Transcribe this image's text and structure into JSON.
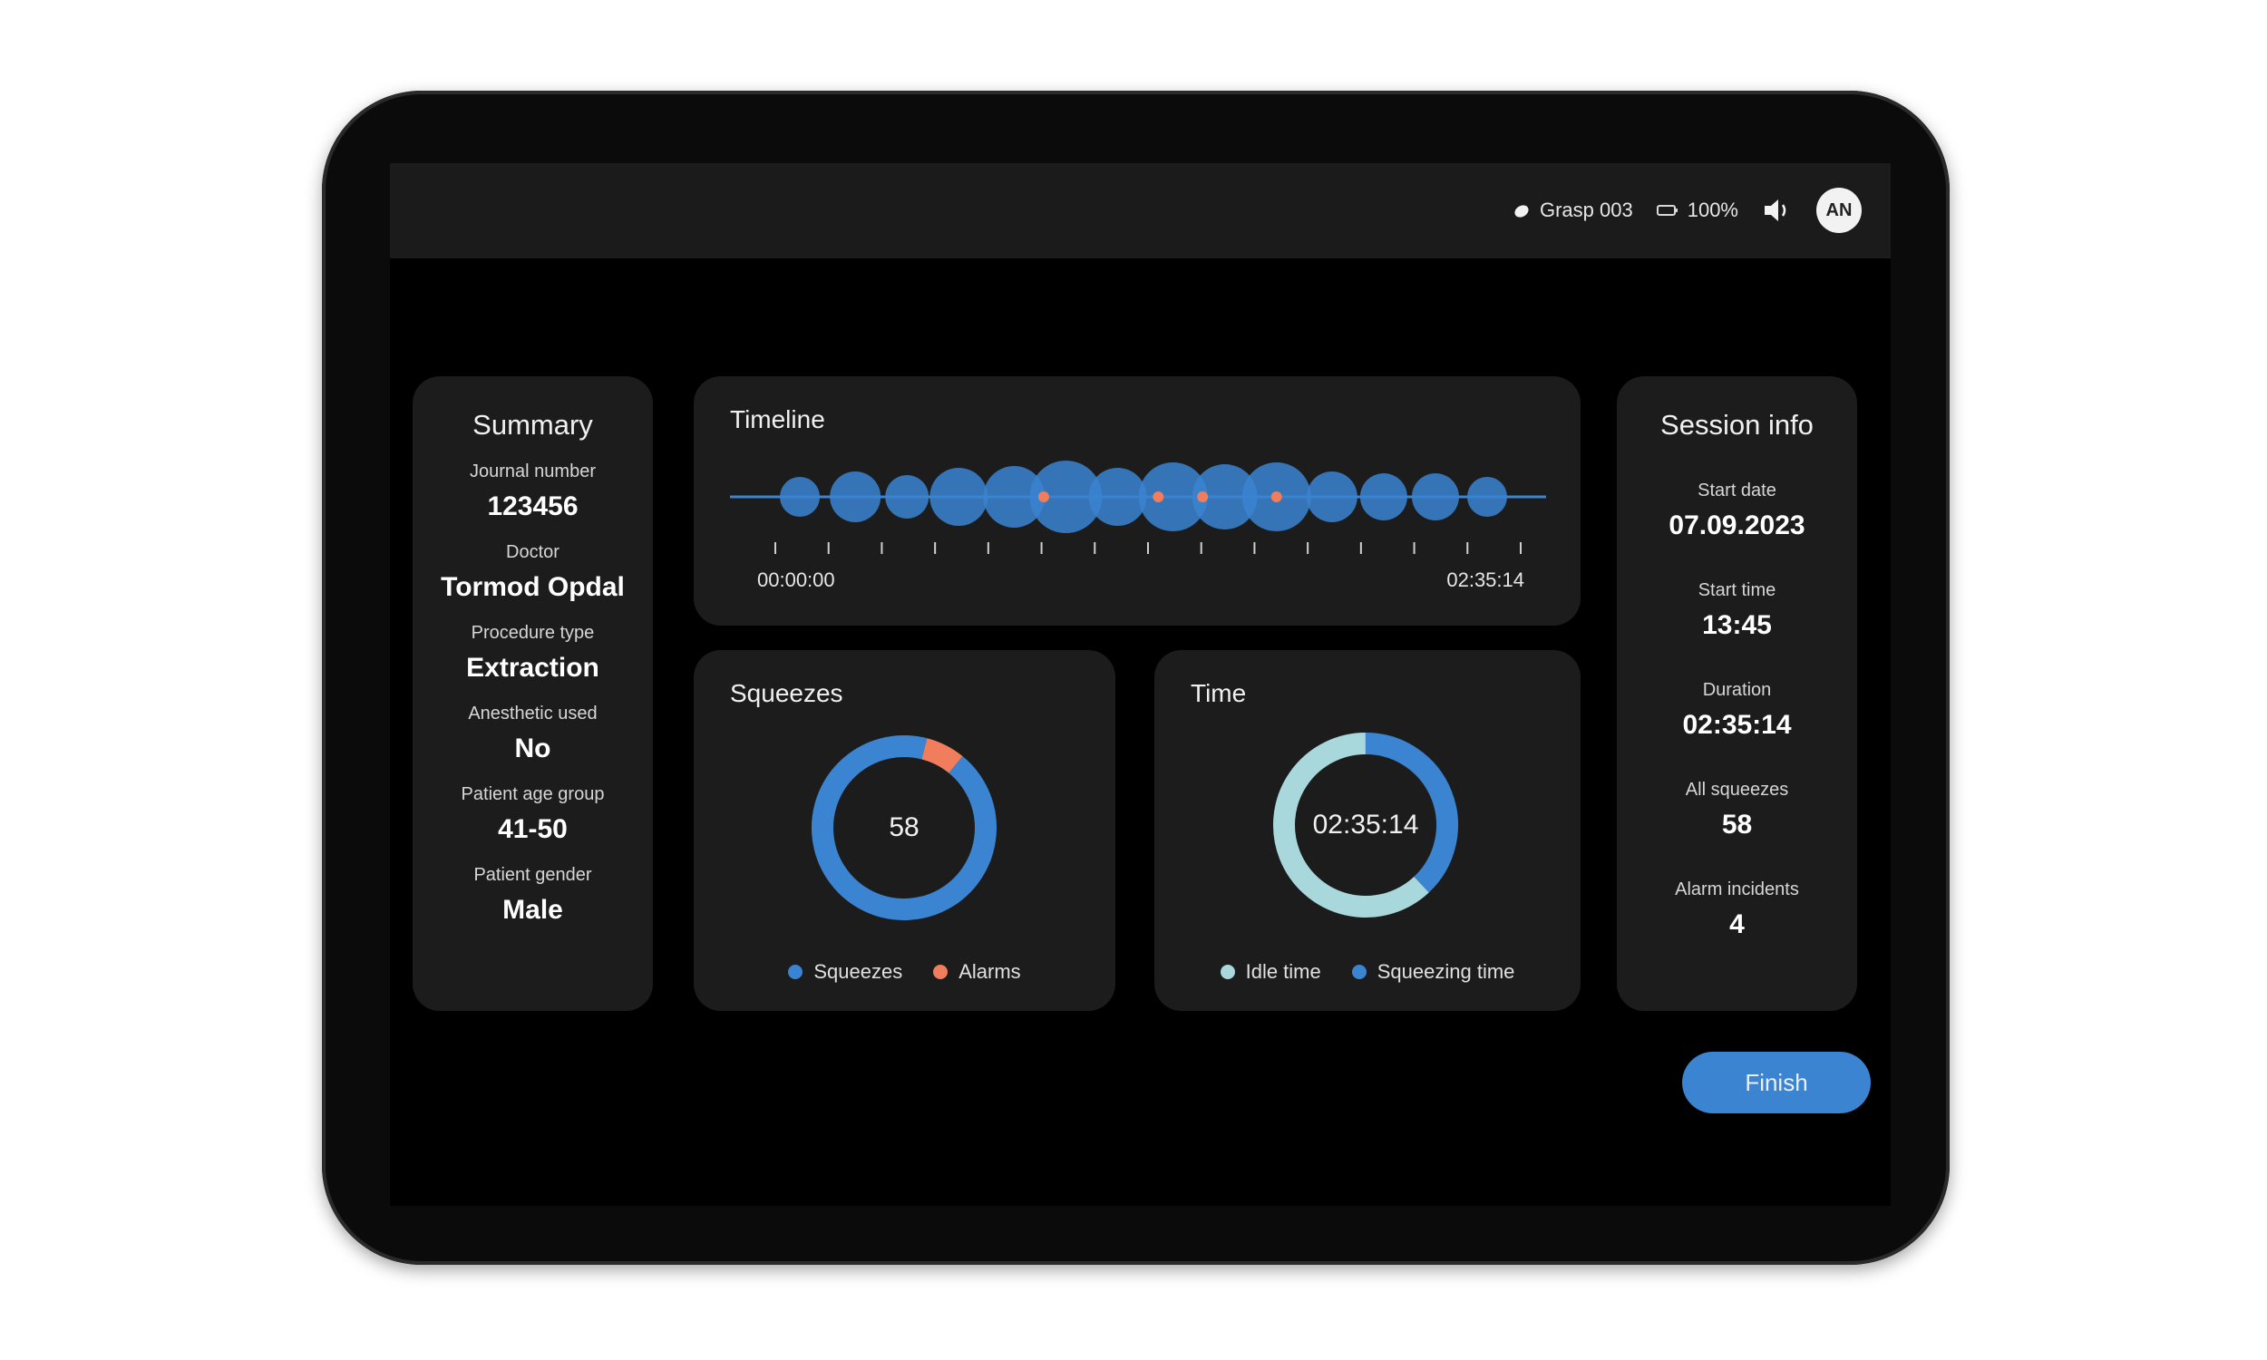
{
  "status_bar": {
    "device_label": "Grasp 003",
    "battery_label": "100%",
    "avatar_initials": "AN"
  },
  "summary": {
    "title": "Summary",
    "fields": [
      {
        "label": "Journal number",
        "value": "123456"
      },
      {
        "label": "Doctor",
        "value": "Tormod Opdal"
      },
      {
        "label": "Procedure type",
        "value": "Extraction"
      },
      {
        "label": "Anesthetic used",
        "value": "No"
      },
      {
        "label": "Patient age group",
        "value": "41-50"
      },
      {
        "label": "Patient gender",
        "value": "Male"
      }
    ]
  },
  "timeline": {
    "title": "Timeline",
    "start_label": "00:00:00",
    "end_label": "02:35:14",
    "tick_count": 15,
    "bubbles": [
      {
        "t": 0.07,
        "r": 0.55
      },
      {
        "t": 0.145,
        "r": 0.7
      },
      {
        "t": 0.215,
        "r": 0.6
      },
      {
        "t": 0.285,
        "r": 0.8
      },
      {
        "t": 0.36,
        "r": 0.85
      },
      {
        "t": 0.43,
        "r": 1.0
      },
      {
        "t": 0.5,
        "r": 0.8
      },
      {
        "t": 0.575,
        "r": 0.95
      },
      {
        "t": 0.645,
        "r": 0.9
      },
      {
        "t": 0.715,
        "r": 0.95
      },
      {
        "t": 0.79,
        "r": 0.7
      },
      {
        "t": 0.86,
        "r": 0.65
      },
      {
        "t": 0.93,
        "r": 0.65
      },
      {
        "t": 1.0,
        "r": 0.55
      }
    ],
    "alarms": [
      0.4,
      0.555,
      0.615,
      0.715
    ]
  },
  "squeezes": {
    "title": "Squeezes",
    "center_label": "58",
    "squeeze_count": 54,
    "alarm_count": 4,
    "legend_squeezes": "Squeezes",
    "legend_alarms": "Alarms"
  },
  "time": {
    "title": "Time",
    "center_label": "02:35:14",
    "squeezing_fraction": 0.38,
    "legend_idle": "Idle time",
    "legend_squeezing": "Squeezing time"
  },
  "session": {
    "title": "Session info",
    "fields": [
      {
        "label": "Start date",
        "value": "07.09.2023"
      },
      {
        "label": "Start time",
        "value": "13:45"
      },
      {
        "label": "Duration",
        "value": "02:35:14"
      },
      {
        "label": "All squeezes",
        "value": "58"
      },
      {
        "label": "Alarm incidents",
        "value": "4"
      }
    ]
  },
  "finish_label": "Finish",
  "colors": {
    "blue": "#3a84d1",
    "alarm": "#f07d5c",
    "idle": "#a9d8dc",
    "card": "#1c1c1c"
  }
}
